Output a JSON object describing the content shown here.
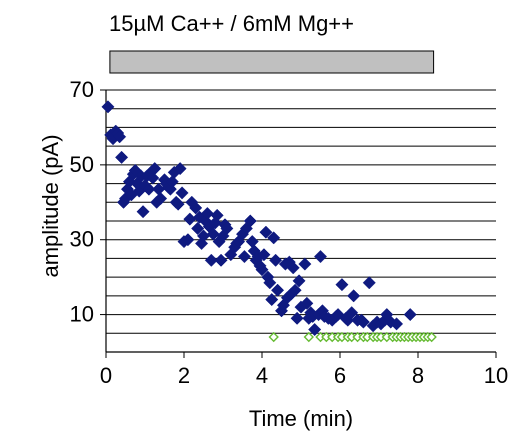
{
  "condition": {
    "label": "15µM Ca++ / 6mM Mg++",
    "bar_x_range": [
      0.1,
      8.4
    ]
  },
  "chart_data": {
    "type": "scatter",
    "title": "",
    "xlabel": "Time (min)",
    "ylabel": "amplitude (pA)",
    "xlim": [
      0,
      10
    ],
    "ylim": [
      0,
      70
    ],
    "x_ticks": [
      0,
      2,
      4,
      6,
      8,
      10
    ],
    "y_ticks": [
      10,
      30,
      50,
      70
    ],
    "gridlines_y": [
      5,
      10,
      15,
      20,
      25,
      30,
      35,
      40,
      45,
      50,
      55,
      60,
      65,
      70
    ],
    "grid": true,
    "legend": "none",
    "colors": {
      "series_dark": "#0f1a80",
      "series_light": "#66bb33",
      "condition_bar_fill": "#c0c0c0",
      "condition_bar_stroke": "#000000"
    },
    "series": [
      {
        "marker": "filled-diamond",
        "color": "#0f1a80",
        "points": [
          [
            0.05,
            65.5
          ],
          [
            0.12,
            58.0
          ],
          [
            0.18,
            57.0
          ],
          [
            0.25,
            59.0
          ],
          [
            0.3,
            58.5
          ],
          [
            0.35,
            57.5
          ],
          [
            0.4,
            52.0
          ],
          [
            0.45,
            40.0
          ],
          [
            0.5,
            41.0
          ],
          [
            0.55,
            43.5
          ],
          [
            0.6,
            45.5
          ],
          [
            0.65,
            42.0
          ],
          [
            0.7,
            47.5
          ],
          [
            0.75,
            48.5
          ],
          [
            0.8,
            45.0
          ],
          [
            0.85,
            43.0
          ],
          [
            0.9,
            47.0
          ],
          [
            0.95,
            37.5
          ],
          [
            1.0,
            44.5
          ],
          [
            1.05,
            47.0
          ],
          [
            1.1,
            43.5
          ],
          [
            1.15,
            48.0
          ],
          [
            1.2,
            46.5
          ],
          [
            1.25,
            49.0
          ],
          [
            1.3,
            40.0
          ],
          [
            1.35,
            43.5
          ],
          [
            1.4,
            41.0
          ],
          [
            1.5,
            46.0
          ],
          [
            1.55,
            45.0
          ],
          [
            1.6,
            44.0
          ],
          [
            1.65,
            43.5
          ],
          [
            1.7,
            45.5
          ],
          [
            1.75,
            48.0
          ],
          [
            1.8,
            40.0
          ],
          [
            1.85,
            39.5
          ],
          [
            1.9,
            49.0
          ],
          [
            1.95,
            42.5
          ],
          [
            2.0,
            29.5
          ],
          [
            2.1,
            30.0
          ],
          [
            2.15,
            35.5
          ],
          [
            2.2,
            40.0
          ],
          [
            2.3,
            38.5
          ],
          [
            2.35,
            33.0
          ],
          [
            2.4,
            36.0
          ],
          [
            2.45,
            29.0
          ],
          [
            2.5,
            31.0
          ],
          [
            2.55,
            35.0
          ],
          [
            2.6,
            37.0
          ],
          [
            2.65,
            33.5
          ],
          [
            2.7,
            24.5
          ],
          [
            2.75,
            31.5
          ],
          [
            2.8,
            34.5
          ],
          [
            2.85,
            36.5
          ],
          [
            2.9,
            29.5
          ],
          [
            2.95,
            24.5
          ],
          [
            3.0,
            31.0
          ],
          [
            3.05,
            34.0
          ],
          [
            3.1,
            33.0
          ],
          [
            3.2,
            26.0
          ],
          [
            3.3,
            28.0
          ],
          [
            3.35,
            29.0
          ],
          [
            3.4,
            29.5
          ],
          [
            3.5,
            31.5
          ],
          [
            3.55,
            25.5
          ],
          [
            3.6,
            33.0
          ],
          [
            3.7,
            35.0
          ],
          [
            3.75,
            29.5
          ],
          [
            3.8,
            27.0
          ],
          [
            3.85,
            24.5
          ],
          [
            3.9,
            25.5
          ],
          [
            3.95,
            23.0
          ],
          [
            4.0,
            22.0
          ],
          [
            4.05,
            26.0
          ],
          [
            4.1,
            32.0
          ],
          [
            4.15,
            20.0
          ],
          [
            4.2,
            18.5
          ],
          [
            4.25,
            14.0
          ],
          [
            4.3,
            30.5
          ],
          [
            4.35,
            24.5
          ],
          [
            4.4,
            16.5
          ],
          [
            4.5,
            11.0
          ],
          [
            4.55,
            12.5
          ],
          [
            4.6,
            23.5
          ],
          [
            4.65,
            14.5
          ],
          [
            4.7,
            24.0
          ],
          [
            4.75,
            15.5
          ],
          [
            4.8,
            22.5
          ],
          [
            4.85,
            16.5
          ],
          [
            4.9,
            9.0
          ],
          [
            4.95,
            19.0
          ],
          [
            5.0,
            12.0
          ],
          [
            5.1,
            23.5
          ],
          [
            5.15,
            13.0
          ],
          [
            5.2,
            9.0
          ],
          [
            5.25,
            10.5
          ],
          [
            5.3,
            9.5
          ],
          [
            5.35,
            6.0
          ],
          [
            5.45,
            10.0
          ],
          [
            5.5,
            25.5
          ],
          [
            5.55,
            11.0
          ],
          [
            5.6,
            9.5
          ],
          [
            5.7,
            9.0
          ],
          [
            5.8,
            8.5
          ],
          [
            5.9,
            9.5
          ],
          [
            5.95,
            10.0
          ],
          [
            6.05,
            18.0
          ],
          [
            6.15,
            9.0
          ],
          [
            6.2,
            8.5
          ],
          [
            6.3,
            10.5
          ],
          [
            6.35,
            15.0
          ],
          [
            6.45,
            8.5
          ],
          [
            6.55,
            8.5
          ],
          [
            6.6,
            8.0
          ],
          [
            6.75,
            18.5
          ],
          [
            6.85,
            7.0
          ],
          [
            6.95,
            8.0
          ],
          [
            7.05,
            7.5
          ],
          [
            7.15,
            8.5
          ],
          [
            7.2,
            10.0
          ],
          [
            7.3,
            8.0
          ],
          [
            7.45,
            7.5
          ],
          [
            7.8,
            10.0
          ]
        ]
      },
      {
        "marker": "open-diamond",
        "color": "#66bb33",
        "points": [
          [
            4.3,
            4.0
          ],
          [
            5.2,
            4.0
          ],
          [
            5.5,
            4.0
          ],
          [
            5.65,
            4.0
          ],
          [
            5.8,
            4.0
          ],
          [
            5.95,
            4.0
          ],
          [
            6.05,
            4.0
          ],
          [
            6.2,
            4.0
          ],
          [
            6.3,
            4.0
          ],
          [
            6.45,
            4.0
          ],
          [
            6.6,
            4.0
          ],
          [
            6.7,
            4.0
          ],
          [
            6.85,
            4.0
          ],
          [
            6.95,
            4.0
          ],
          [
            7.05,
            4.0
          ],
          [
            7.2,
            4.0
          ],
          [
            7.35,
            4.0
          ],
          [
            7.45,
            4.0
          ],
          [
            7.55,
            4.0
          ],
          [
            7.65,
            4.0
          ],
          [
            7.75,
            4.0
          ],
          [
            7.85,
            4.0
          ],
          [
            7.95,
            4.0
          ],
          [
            8.05,
            4.0
          ],
          [
            8.15,
            4.0
          ],
          [
            8.25,
            4.0
          ],
          [
            8.35,
            4.0
          ]
        ]
      }
    ]
  }
}
